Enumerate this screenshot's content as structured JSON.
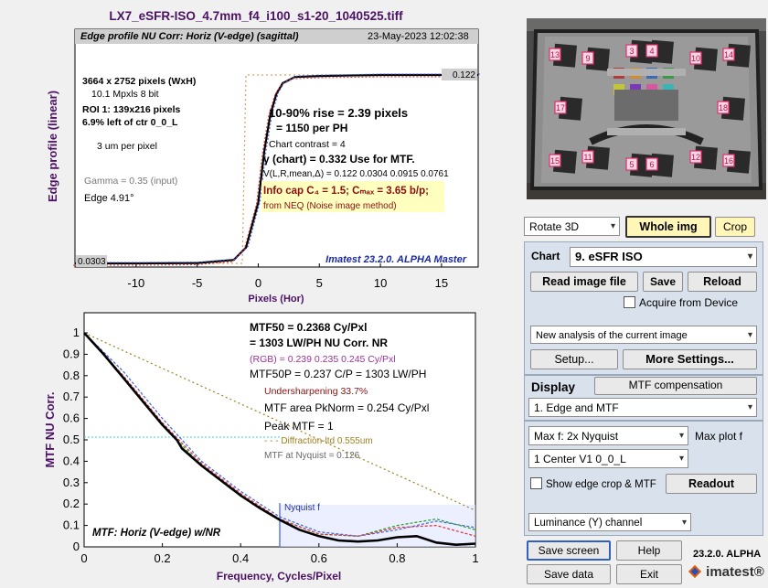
{
  "title": "LX7_eSFR-ISO_4.7mm_f4_i100_s1-20_1040525.tiff",
  "edge_plot": {
    "ylabel": "Edge profile (linear)",
    "xlabel": "Pixels (Hor)",
    "header": "Edge profile  NU Corr: Horiz (V-edge) (sagittal)",
    "date": "23-May-2023 12:02:38",
    "info": [
      "3664 x 2752 pixels (WxH)",
      "10.1 Mpxls  8 bit",
      "ROI 1:  139x216 pixels",
      "6.9% left of ctr  0_0_L",
      "3 um per pixel"
    ],
    "gamma": "Gamma = 0.35 (input)",
    "edge": "Edge  4.91°",
    "rise1": "10-90% rise = 2.39 pixels",
    "rise2": "=  1150 per PH",
    "contrast": "Chart contrast = 4",
    "gamma_chart": "γ (chart) = 0.332  Use for MTF.",
    "vstats": "V(L,R,mean,Δ) = 0.122  0.0304  0.0915  0.0761",
    "infocap": "Info cap C₄ = 1.5;  Cₘₐₓ = 3.65 b/p;",
    "neq": "from NEQ (Noise image method)",
    "brand": "Imatest 23.2.0. ALPHA Master",
    "right_level": "0.122",
    "left_level": "0.0303"
  },
  "mtf_plot": {
    "ylabel": "MTF  NU Corr.",
    "xlabel": "Frequency, Cycles/Pixel",
    "mtf50": "MTF50 = 0.2368 Cy/Pxl",
    "lwph": "= 1303 LW/PH  NU Corr.  NR",
    "rgb": "(RGB) = 0.239  0.235  0.245 Cy/Pxl",
    "mtf50p": "MTF50P = 0.237 C/P = 1303 LW/PH",
    "under": "Undersharpening 33.7%",
    "area": "MTF area PkNorm = 0.254 Cy/Pxl",
    "peak": "Peak MTF = 1",
    "diff": "- - - Diffraction-ltd  0.555um",
    "nyq_val": "MTF at Nyquist = 0.126",
    "nyq_label": "Nyquist f",
    "caption": "MTF: Horiz (V-edge) w/NR"
  },
  "chart_data": [
    {
      "type": "line",
      "title": "Edge profile  NU Corr: Horiz (V-edge) (sagittal)",
      "xlabel": "Pixels (Hor)",
      "ylabel": "Edge profile (linear)",
      "xlim": [
        -15,
        18
      ],
      "x_ticks": [
        -10,
        -5,
        0,
        5,
        10,
        15
      ],
      "series": [
        {
          "x": [
            -15,
            -10,
            -5,
            -2,
            -1,
            0,
            0.5,
            1,
            1.5,
            2,
            3,
            5,
            10,
            15,
            18
          ],
          "y": [
            0.0303,
            0.0303,
            0.0305,
            0.032,
            0.038,
            0.06,
            0.085,
            0.103,
            0.113,
            0.118,
            0.121,
            0.1215,
            0.122,
            0.122,
            0.122
          ]
        }
      ]
    },
    {
      "type": "line",
      "title": "MTF: Horiz (V-edge) w/NR",
      "xlabel": "Frequency, Cycles/Pixel",
      "ylabel": "MTF  NU Corr.",
      "xlim": [
        0,
        1
      ],
      "ylim": [
        0,
        1
      ],
      "x_ticks": [
        0,
        0.2,
        0.4,
        0.6,
        0.8,
        1
      ],
      "y_ticks": [
        0,
        0.1,
        0.2,
        0.3,
        0.4,
        0.5,
        0.6,
        0.7,
        0.8,
        0.9,
        1
      ],
      "series": [
        {
          "name": "Y",
          "color": "#000000",
          "x": [
            0,
            0.05,
            0.1,
            0.15,
            0.2,
            0.237,
            0.25,
            0.3,
            0.35,
            0.4,
            0.45,
            0.5,
            0.55,
            0.6,
            0.65,
            0.7,
            0.75,
            0.8,
            0.85,
            0.9,
            0.95,
            1.0
          ],
          "y": [
            1,
            0.9,
            0.79,
            0.68,
            0.57,
            0.5,
            0.46,
            0.38,
            0.31,
            0.24,
            0.18,
            0.126,
            0.08,
            0.05,
            0.03,
            0.025,
            0.03,
            0.045,
            0.05,
            0.02,
            0.01,
            0.015
          ]
        },
        {
          "name": "R",
          "color": "#e03030",
          "x": [
            0,
            0.1,
            0.2,
            0.3,
            0.4,
            0.5,
            0.6,
            0.7,
            0.8,
            0.9,
            1.0
          ],
          "y": [
            1,
            0.8,
            0.58,
            0.39,
            0.25,
            0.13,
            0.06,
            0.05,
            0.09,
            0.1,
            0.05
          ]
        },
        {
          "name": "G",
          "color": "#20a020",
          "x": [
            0,
            0.1,
            0.2,
            0.3,
            0.4,
            0.5,
            0.6,
            0.7,
            0.8,
            0.9,
            1.0
          ],
          "y": [
            1,
            0.79,
            0.57,
            0.38,
            0.24,
            0.13,
            0.06,
            0.05,
            0.1,
            0.13,
            0.08
          ]
        },
        {
          "name": "B",
          "color": "#4060e0",
          "x": [
            0,
            0.1,
            0.2,
            0.3,
            0.4,
            0.5,
            0.6,
            0.7,
            0.8,
            0.9,
            1.0
          ],
          "y": [
            1,
            0.82,
            0.6,
            0.4,
            0.26,
            0.14,
            0.07,
            0.05,
            0.08,
            0.12,
            0.09
          ]
        },
        {
          "name": "Diffraction-ltd",
          "color": "#a08020",
          "x": [
            0,
            1.0
          ],
          "y": [
            1,
            0.17
          ]
        }
      ],
      "nyquist_x": 0.5
    }
  ],
  "controls": {
    "rotate": "Rotate 3D",
    "whole_img": "Whole img",
    "crop": "Crop",
    "chart_label": "Chart",
    "chart_value": "9. eSFR ISO",
    "read_image": "Read image file",
    "save": "Save",
    "reload": "Reload",
    "acquire": "Acquire from Device",
    "analysis": "New analysis of the current image",
    "setup": "Setup...",
    "more_settings": "More Settings...",
    "display_label": "Display",
    "mtf_comp": "MTF compensation",
    "display_value": "1. Edge and MTF",
    "maxf_value": "Max f:     2x Nyquist",
    "maxf_label": "Max plot f",
    "roi_value": "1  Center  V1     0_0_L",
    "show_edge": "Show edge crop & MTF",
    "readout": "Readout",
    "channel": "Luminance (Y) channel",
    "save_screen": "Save screen",
    "help": "Help",
    "save_data": "Save data",
    "exit": "Exit",
    "version": "23.2.0. ALPHA",
    "logo": "imatest®"
  },
  "thumbnail_numbers": [
    "13",
    "9",
    "3",
    "4",
    "10",
    "14",
    "17",
    "1",
    "2",
    "18",
    "15",
    "11",
    "5",
    "6",
    "12",
    "16"
  ]
}
